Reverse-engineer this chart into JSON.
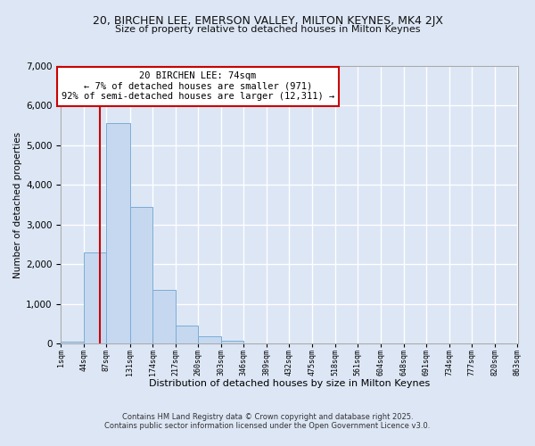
{
  "title": "20, BIRCHEN LEE, EMERSON VALLEY, MILTON KEYNES, MK4 2JX",
  "subtitle": "Size of property relative to detached houses in Milton Keynes",
  "xlabel": "Distribution of detached houses by size in Milton Keynes",
  "ylabel": "Number of detached properties",
  "bar_color": "#c5d8f0",
  "bar_edge_color": "#7aadd4",
  "background_color": "#dce6f5",
  "grid_color": "#ffffff",
  "annotation_box_text": "20 BIRCHEN LEE: 74sqm\n← 7% of detached houses are smaller (971)\n92% of semi-detached houses are larger (12,311) →",
  "annotation_box_color": "#ffffff",
  "annotation_box_edge_color": "#cc0000",
  "vline_x": 74,
  "vline_color": "#cc0000",
  "footnote1": "Contains HM Land Registry data © Crown copyright and database right 2025.",
  "footnote2": "Contains public sector information licensed under the Open Government Licence v3.0.",
  "bin_edges": [
    1,
    44,
    87,
    131,
    174,
    217,
    260,
    303,
    346,
    389,
    432,
    475,
    518,
    561,
    604,
    648,
    691,
    734,
    777,
    820,
    863
  ],
  "bin_counts": [
    60,
    2300,
    5550,
    3450,
    1350,
    450,
    175,
    75,
    10,
    0,
    0,
    0,
    0,
    0,
    0,
    0,
    0,
    0,
    0,
    0
  ],
  "ylim": [
    0,
    7000
  ],
  "yticks": [
    0,
    1000,
    2000,
    3000,
    4000,
    5000,
    6000,
    7000
  ]
}
